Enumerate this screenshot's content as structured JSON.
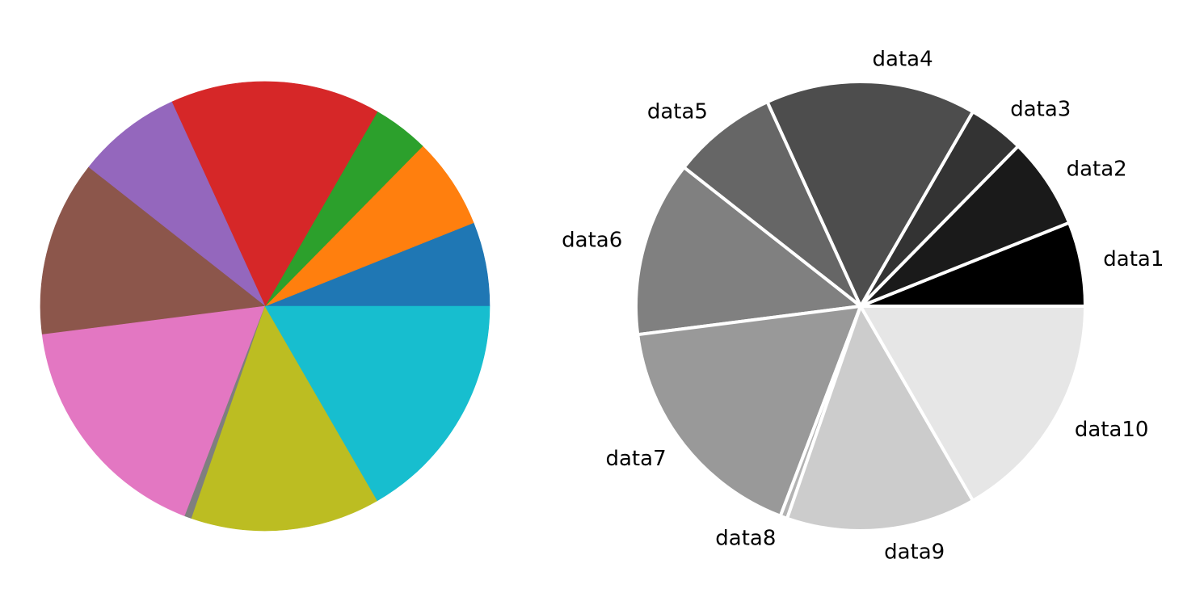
{
  "chart_data": [
    {
      "type": "pie",
      "categories": [
        "",
        "",
        "",
        "",
        "",
        "",
        "",
        "",
        "",
        ""
      ],
      "values": [
        6.0,
        6.5,
        4.0,
        15.0,
        7.5,
        12.5,
        17.0,
        0.5,
        13.5,
        16.5
      ],
      "colors": [
        "#1f77b4",
        "#ff7f0e",
        "#2ca02c",
        "#d62728",
        "#9467bd",
        "#8c564b",
        "#e377c2",
        "#7f7f7f",
        "#bcbd22",
        "#17becf"
      ],
      "start_angle_deg": 0,
      "direction": "counterclockwise",
      "wedge_edge": "none",
      "labels_shown": false
    },
    {
      "type": "pie",
      "categories": [
        "data1",
        "data2",
        "data3",
        "data4",
        "data5",
        "data6",
        "data7",
        "data8",
        "data9",
        "data10"
      ],
      "values": [
        6.0,
        6.5,
        4.0,
        15.0,
        7.5,
        12.5,
        17.0,
        0.5,
        13.5,
        16.5
      ],
      "colors": [
        "#000000",
        "#1a1a1a",
        "#333333",
        "#4d4d4d",
        "#666666",
        "#808080",
        "#999999",
        "#b3b3b3",
        "#cccccc",
        "#e6e6e6"
      ],
      "start_angle_deg": 0,
      "direction": "counterclockwise",
      "wedge_edge": "white",
      "labels_shown": true
    }
  ]
}
